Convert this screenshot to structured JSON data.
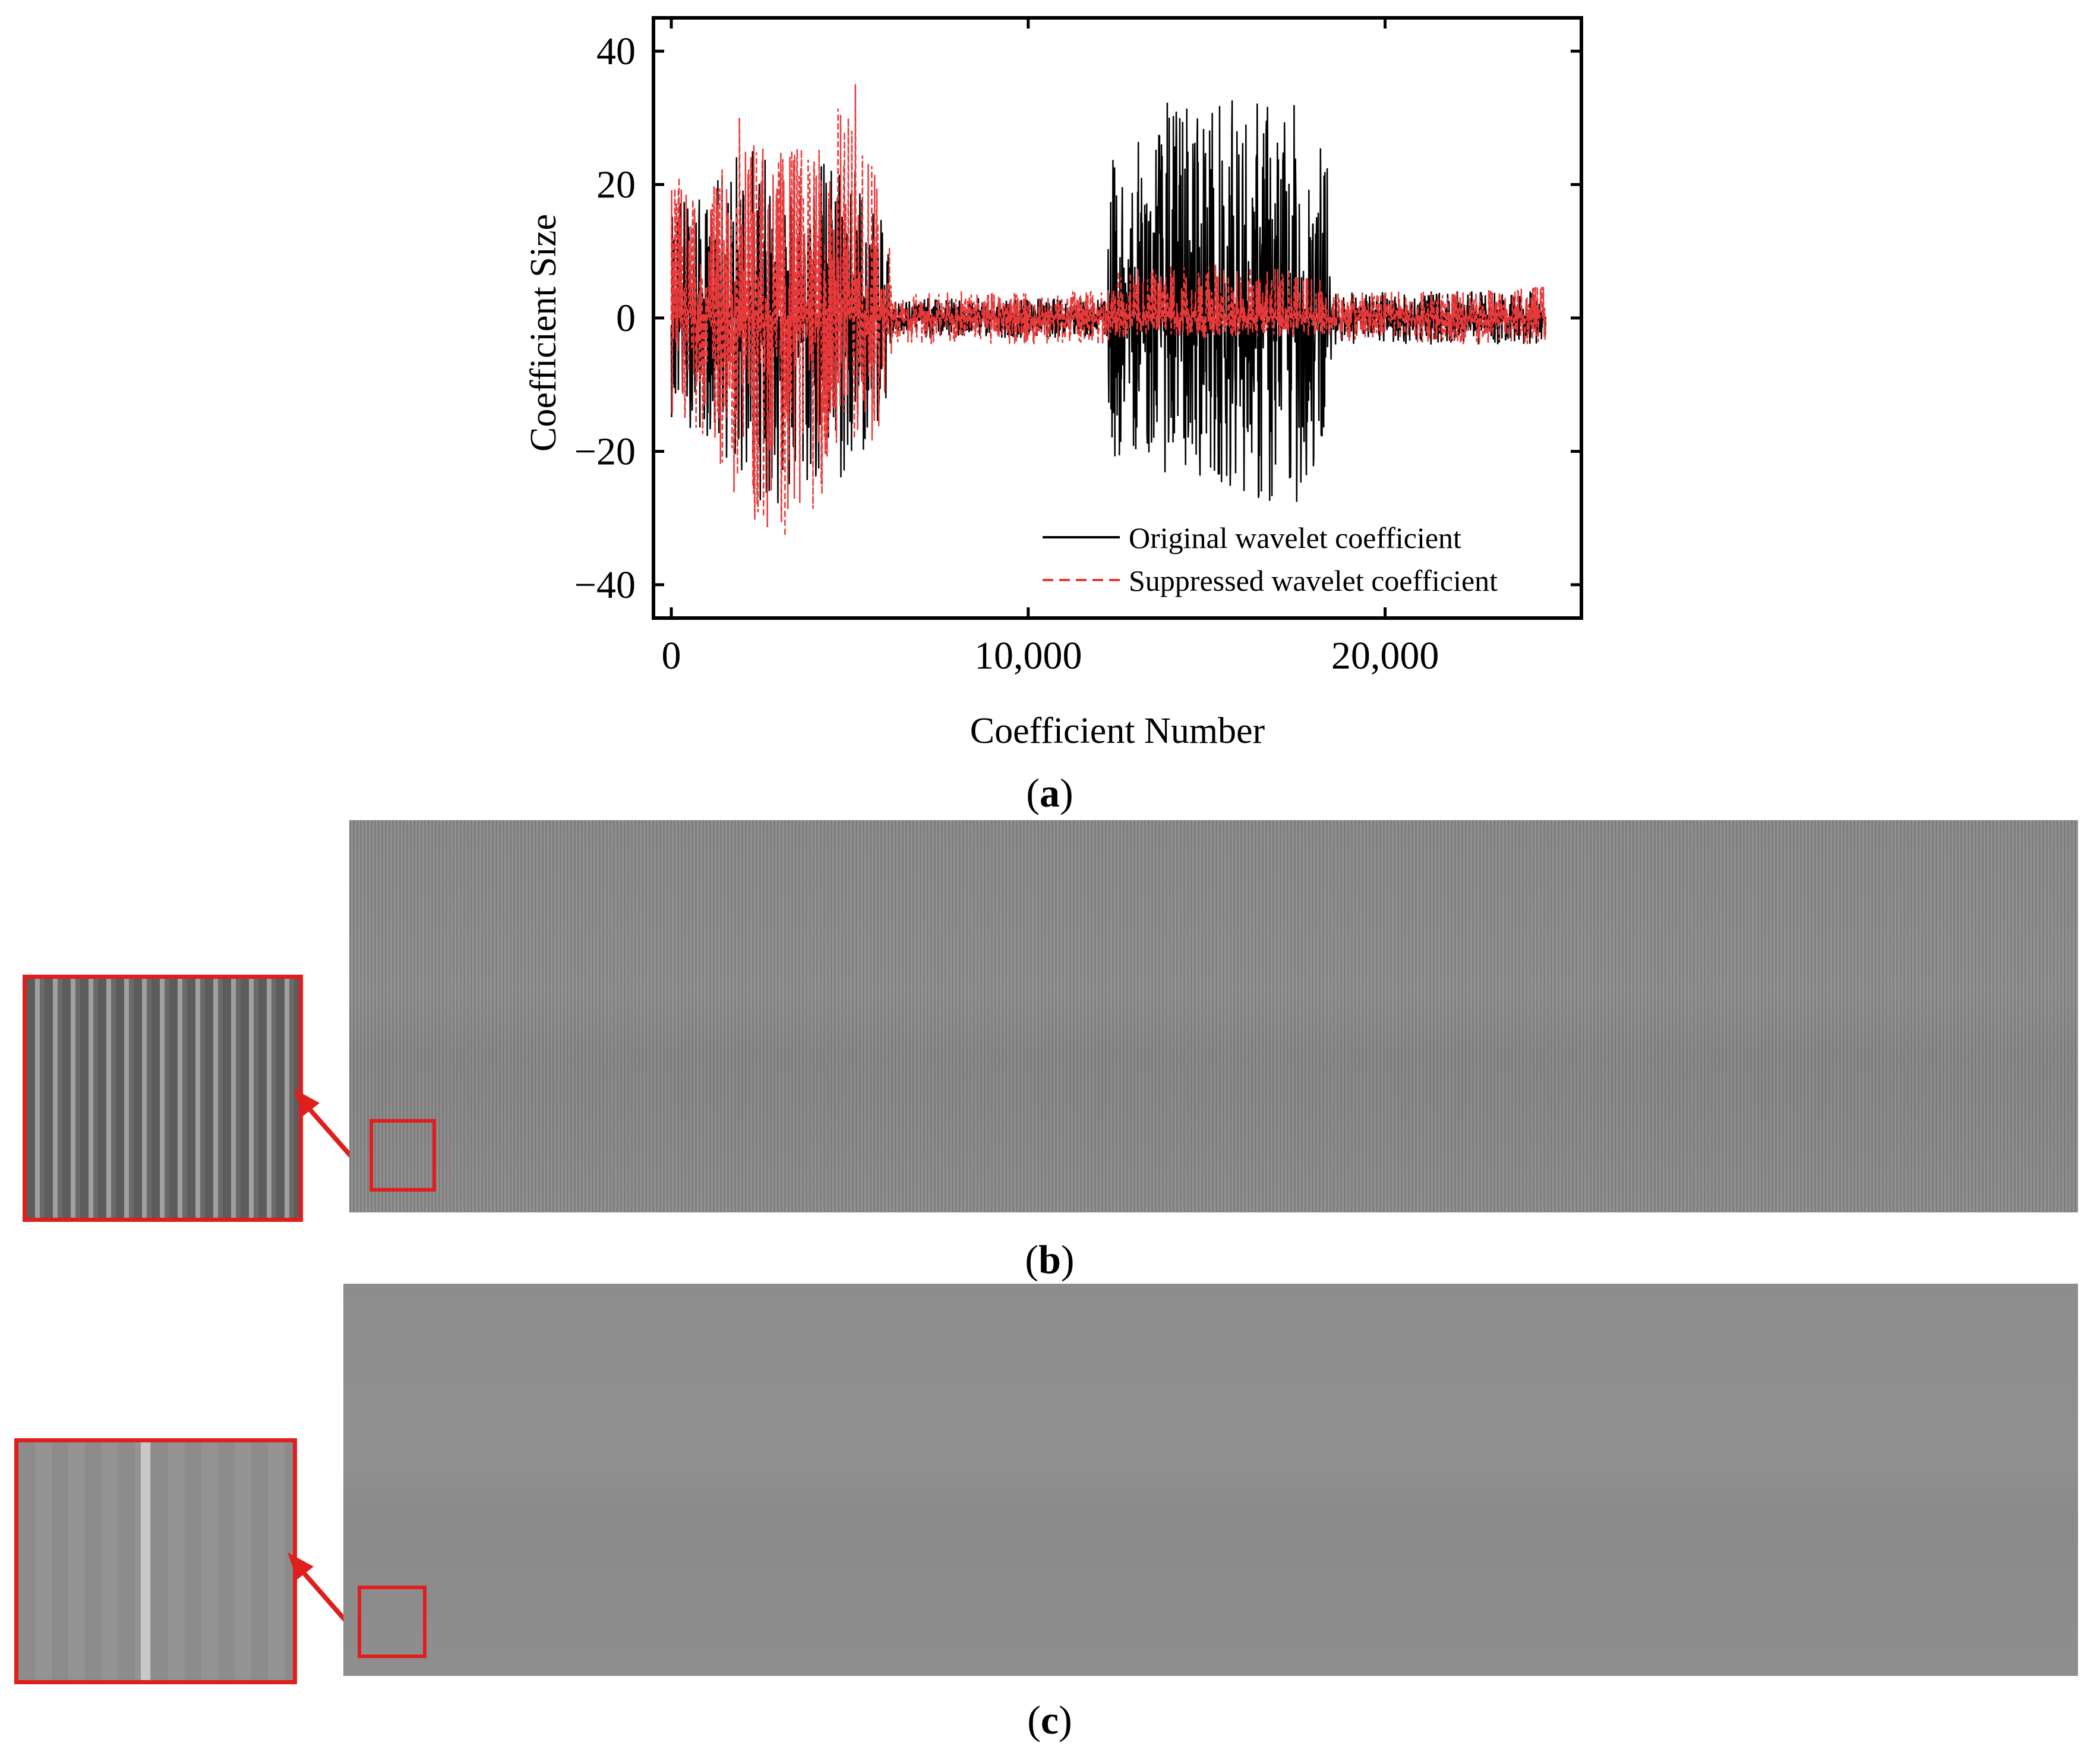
{
  "figure": {
    "captions": {
      "a": "a",
      "b": "b",
      "c": "c"
    }
  },
  "chart_data": {
    "type": "line",
    "xlabel": "Coefficient Number",
    "ylabel": "Coefficient Size",
    "xlim": [
      -500,
      25500
    ],
    "ylim": [
      -45,
      45
    ],
    "x_ticks": [
      {
        "value": 0,
        "label": "0"
      },
      {
        "value": 10000,
        "label": "10,000"
      },
      {
        "value": 20000,
        "label": "20,000"
      }
    ],
    "y_ticks": [
      {
        "value": 40,
        "label": "40"
      },
      {
        "value": 20,
        "label": "20"
      },
      {
        "value": 0,
        "label": "0"
      },
      {
        "value": -20,
        "label": "−20"
      },
      {
        "value": -40,
        "label": "−40"
      }
    ],
    "legend_position": "bottom-right",
    "grid": false,
    "series": [
      {
        "name": "Original wavelet coefficient",
        "color": "#000000",
        "style": "solid",
        "envelope": {
          "x": [
            0,
            1000,
            2000,
            3000,
            4000,
            5000,
            6100,
            6200,
            9000,
            12200,
            12300,
            13000,
            14000,
            15000,
            16000,
            17000,
            18000,
            18400,
            18500,
            21000,
            24500
          ],
          "upper": [
            20,
            18,
            28,
            22,
            24,
            26,
            12,
            3,
            3,
            3,
            24,
            26,
            34,
            34,
            33,
            34,
            30,
            24,
            4,
            4,
            4
          ],
          "lower": [
            -15,
            -18,
            -25,
            -30,
            -26,
            -26,
            -12,
            -3,
            -3,
            -3,
            -23,
            -20,
            -24,
            -24,
            -26,
            -32,
            -25,
            -20,
            -4,
            -4,
            -4
          ]
        }
      },
      {
        "name": "Suppressed wavelet coefficient",
        "color": "#e8393a",
        "style": "dashed",
        "envelope": {
          "x": [
            0,
            1000,
            2000,
            2800,
            4000,
            5300,
            6100,
            6200,
            9000,
            12200,
            12300,
            14000,
            16000,
            18400,
            18500,
            21000,
            24500
          ],
          "upper": [
            22,
            18,
            32,
            25,
            27,
            37,
            12,
            4,
            4,
            4,
            7,
            8,
            8,
            7,
            4,
            4,
            5
          ],
          "lower": [
            -15,
            -18,
            -30,
            -35,
            -29,
            -25,
            -12,
            -4,
            -4,
            -4,
            -3,
            -3,
            -3,
            -3,
            -4,
            -4,
            -4
          ]
        }
      }
    ]
  },
  "colors": {
    "image_gray": "#8a8a8a",
    "highlight": "#e01e1e"
  }
}
